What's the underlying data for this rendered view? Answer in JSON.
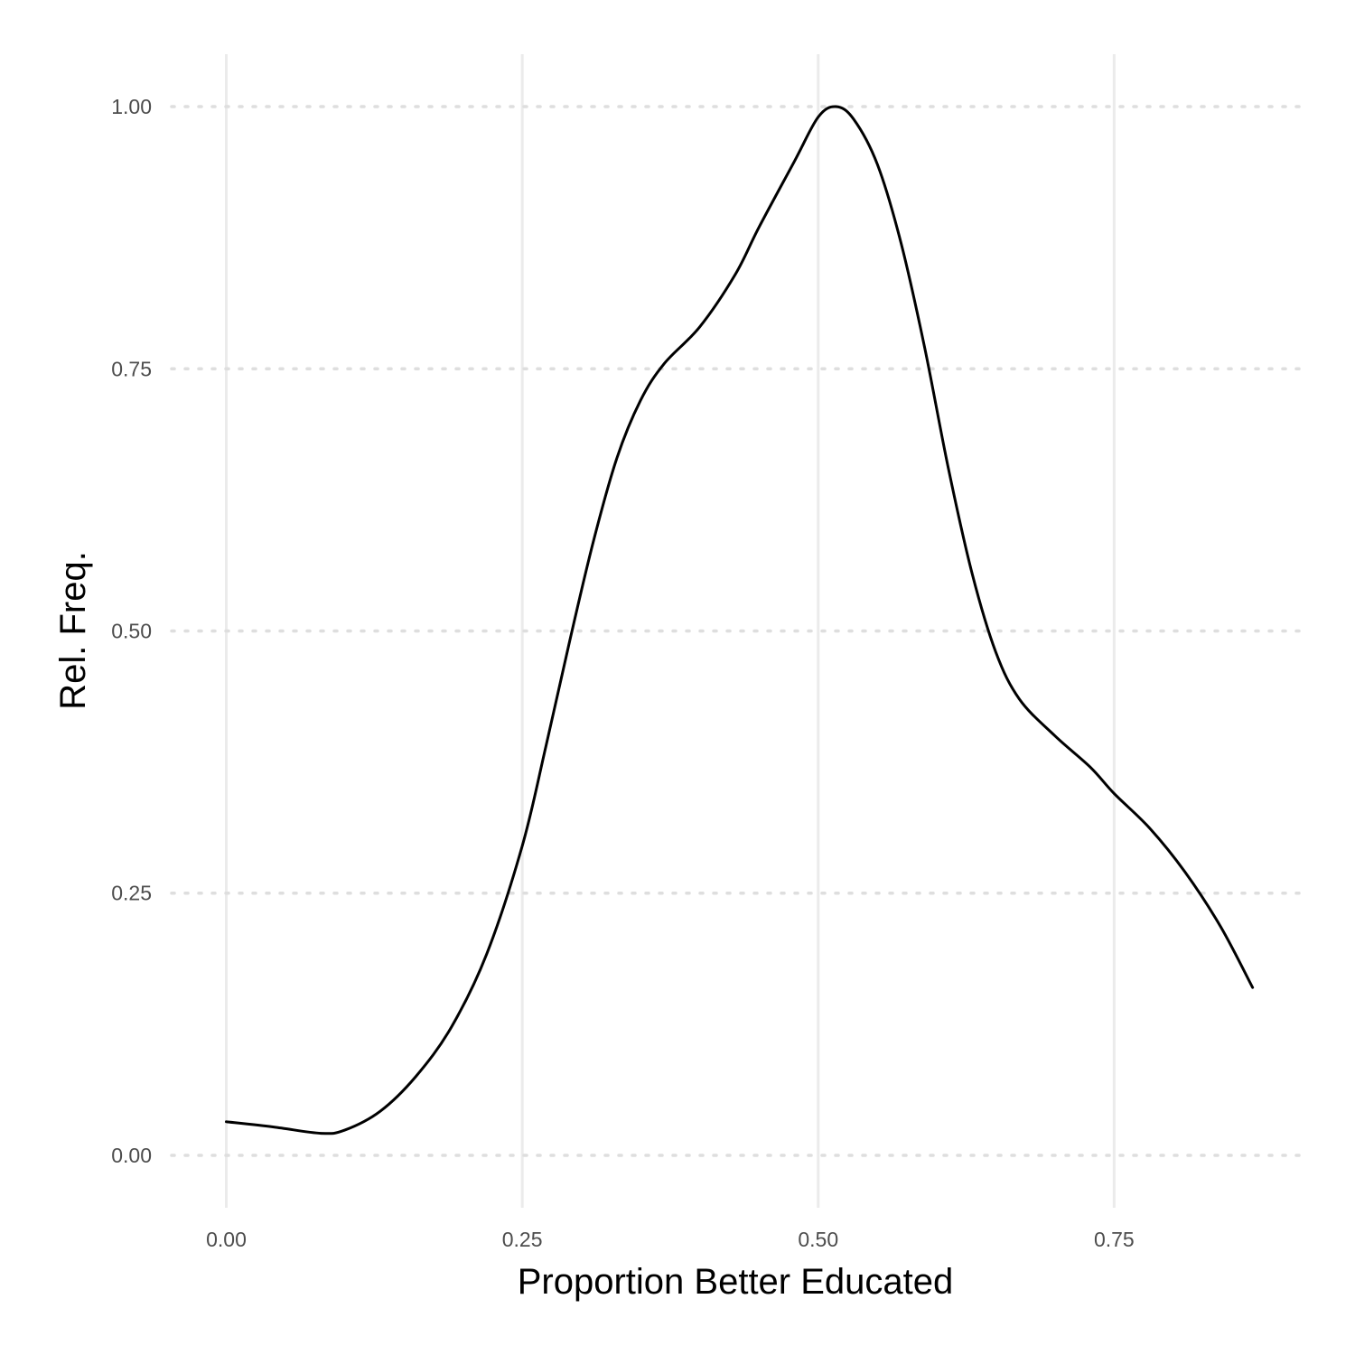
{
  "chart_data": {
    "type": "line",
    "title": "",
    "xlabel": "Proportion Better Educated",
    "ylabel": "Rel. Freq.",
    "xlim": [
      -0.05,
      0.91
    ],
    "ylim": [
      -0.05,
      1.05
    ],
    "x_ticks": [
      {
        "value": 0.0,
        "label": "0.00"
      },
      {
        "value": 0.25,
        "label": "0.25"
      },
      {
        "value": 0.5,
        "label": "0.50"
      },
      {
        "value": 0.75,
        "label": "0.75"
      }
    ],
    "y_ticks": [
      {
        "value": 0.0,
        "label": "0.00"
      },
      {
        "value": 0.25,
        "label": "0.25"
      },
      {
        "value": 0.5,
        "label": "0.50"
      },
      {
        "value": 0.75,
        "label": "0.75"
      },
      {
        "value": 1.0,
        "label": "1.00"
      }
    ],
    "grid": true,
    "legend": "none",
    "line_color": "#000000",
    "series": [
      {
        "x": [
          0.0,
          0.04,
          0.08,
          0.1,
          0.13,
          0.16,
          0.19,
          0.22,
          0.25,
          0.27,
          0.29,
          0.31,
          0.33,
          0.35,
          0.37,
          0.4,
          0.43,
          0.45,
          0.48,
          0.5,
          0.515,
          0.53,
          0.55,
          0.57,
          0.59,
          0.61,
          0.63,
          0.65,
          0.67,
          0.7,
          0.73,
          0.75,
          0.78,
          0.81,
          0.84,
          0.867
        ],
        "y": [
          0.032,
          0.027,
          0.021,
          0.024,
          0.042,
          0.075,
          0.122,
          0.192,
          0.295,
          0.39,
          0.49,
          0.585,
          0.665,
          0.72,
          0.755,
          0.79,
          0.84,
          0.885,
          0.948,
          0.99,
          1.0,
          0.988,
          0.945,
          0.87,
          0.77,
          0.655,
          0.555,
          0.48,
          0.435,
          0.4,
          0.37,
          0.345,
          0.312,
          0.27,
          0.218,
          0.16
        ]
      }
    ]
  }
}
